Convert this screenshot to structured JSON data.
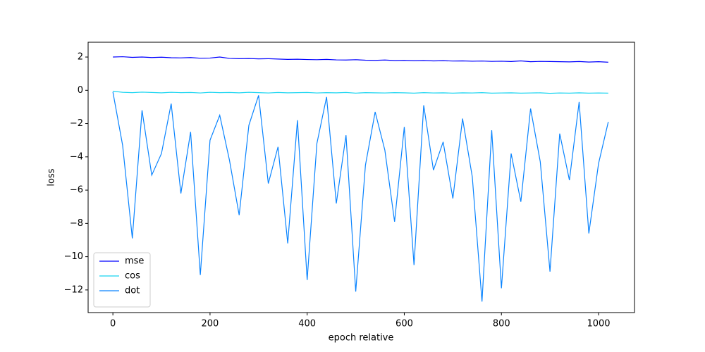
{
  "chart_data": {
    "type": "line",
    "xlabel": "epoch relative",
    "ylabel": "loss",
    "x": [
      0,
      20,
      40,
      60,
      80,
      100,
      120,
      140,
      160,
      180,
      200,
      220,
      240,
      260,
      280,
      300,
      320,
      340,
      360,
      380,
      400,
      420,
      440,
      460,
      480,
      500,
      520,
      540,
      560,
      580,
      600,
      620,
      640,
      660,
      680,
      700,
      720,
      740,
      760,
      780,
      800,
      820,
      840,
      860,
      880,
      900,
      920,
      940,
      960,
      980,
      1000,
      1020
    ],
    "series": [
      {
        "name": "mse",
        "color": "#0000ff",
        "values": [
          2.0,
          2.02,
          1.98,
          2.0,
          1.97,
          1.99,
          1.96,
          1.95,
          1.97,
          1.93,
          1.94,
          2.0,
          1.92,
          1.9,
          1.91,
          1.89,
          1.9,
          1.88,
          1.86,
          1.87,
          1.85,
          1.84,
          1.86,
          1.83,
          1.82,
          1.84,
          1.81,
          1.8,
          1.82,
          1.79,
          1.8,
          1.78,
          1.79,
          1.77,
          1.78,
          1.76,
          1.77,
          1.75,
          1.76,
          1.74,
          1.75,
          1.73,
          1.77,
          1.72,
          1.74,
          1.73,
          1.72,
          1.71,
          1.73,
          1.7,
          1.72,
          1.69
        ]
      },
      {
        "name": "cos",
        "color": "#17d4f0",
        "values": [
          -0.05,
          -0.12,
          -0.14,
          -0.11,
          -0.13,
          -0.15,
          -0.12,
          -0.14,
          -0.13,
          -0.16,
          -0.12,
          -0.14,
          -0.13,
          -0.15,
          -0.12,
          -0.14,
          -0.16,
          -0.13,
          -0.15,
          -0.14,
          -0.13,
          -0.16,
          -0.14,
          -0.15,
          -0.13,
          -0.17,
          -0.14,
          -0.15,
          -0.16,
          -0.14,
          -0.15,
          -0.17,
          -0.14,
          -0.16,
          -0.15,
          -0.17,
          -0.15,
          -0.16,
          -0.14,
          -0.17,
          -0.16,
          -0.15,
          -0.17,
          -0.16,
          -0.15,
          -0.18,
          -0.16,
          -0.17,
          -0.15,
          -0.17,
          -0.16,
          -0.17
        ]
      },
      {
        "name": "dot",
        "color": "#0a84ff",
        "values": [
          -0.1,
          -3.3,
          -8.9,
          -1.2,
          -5.1,
          -3.8,
          -0.8,
          -6.2,
          -2.5,
          -11.1,
          -3.0,
          -1.5,
          -4.2,
          -7.5,
          -2.1,
          -0.3,
          -5.6,
          -3.4,
          -9.2,
          -1.8,
          -11.4,
          -3.2,
          -0.4,
          -6.8,
          -2.7,
          -12.1,
          -4.5,
          -1.3,
          -3.6,
          -7.9,
          -2.2,
          -10.5,
          -0.9,
          -4.8,
          -3.1,
          -6.5,
          -1.7,
          -5.2,
          -12.7,
          -2.4,
          -11.9,
          -3.8,
          -6.7,
          -1.1,
          -4.3,
          -10.9,
          -2.6,
          -5.4,
          -0.7,
          -8.6,
          -4.4,
          -1.9
        ]
      }
    ],
    "xlim": [
      -51,
      1074
    ],
    "ylim": [
      -13.36,
      2.89
    ],
    "xticks": [
      0,
      200,
      400,
      600,
      800,
      1000
    ],
    "yticks": [
      {
        "value": -12,
        "label": "−12"
      },
      {
        "value": -10,
        "label": "−10"
      },
      {
        "value": -8,
        "label": "−8"
      },
      {
        "value": -6,
        "label": "−6"
      },
      {
        "value": -4,
        "label": "−4"
      },
      {
        "value": -2,
        "label": "−2"
      },
      0,
      2
    ],
    "legend": "lower left"
  }
}
